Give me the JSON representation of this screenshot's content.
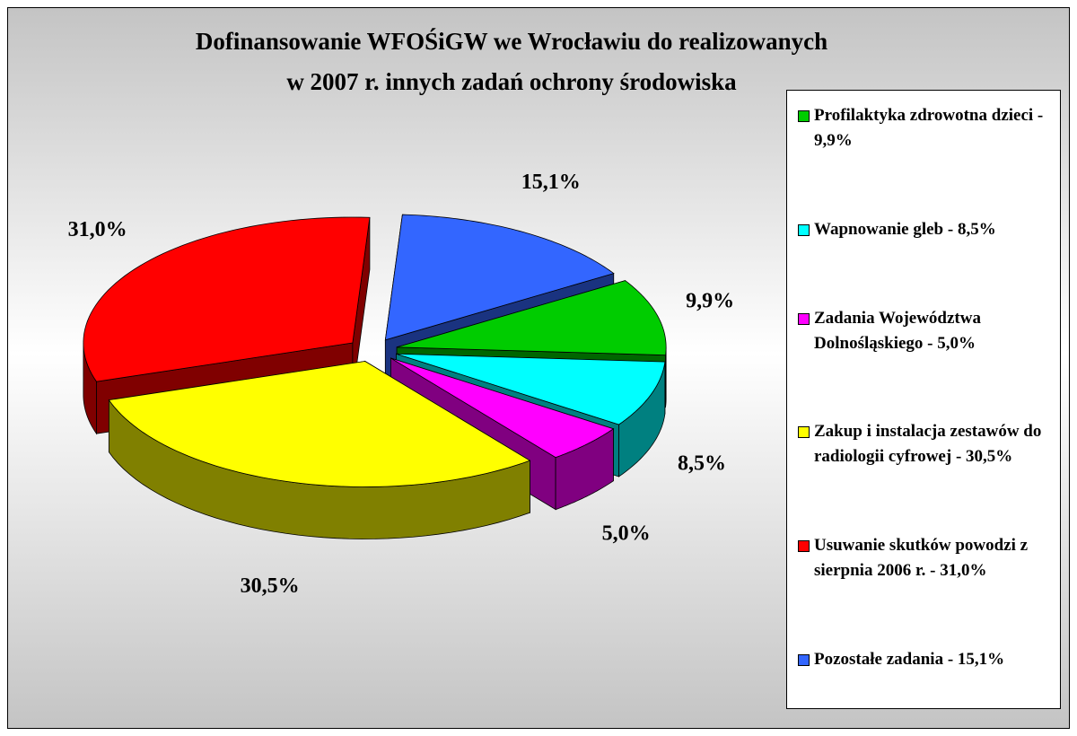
{
  "chart_data": {
    "type": "pie",
    "title": [
      "Dofinansowanie WFOŚiGW we Wrocławiu do realizowanych",
      "w 2007 r. innych zadań ochrony środowiska"
    ],
    "categories": [
      "Profilaktyka zdrowotna dzieci - 9,9%",
      "Wapnowanie gleb - 8,5%",
      "Zadania Województwa Dolnośląskiego - 5,0%",
      "Zakup i instalacja zestawów do radiologii cyfrowej - 30,5%",
      "Usuwanie skutków powodzi z sierpnia 2006 r. - 31,0%",
      "Pozostałe zadania - 15,1%"
    ],
    "values": [
      9.9,
      8.5,
      5.0,
      30.5,
      31.0,
      15.1
    ],
    "value_labels": [
      "9,9%",
      "8,5%",
      "5,0%",
      "30,5%",
      "31,0%",
      "15,1%"
    ],
    "colors": [
      "#00cc00",
      "#00ffff",
      "#ff00ff",
      "#ffff00",
      "#ff0000",
      "#3366ff"
    ],
    "legend": "right"
  }
}
